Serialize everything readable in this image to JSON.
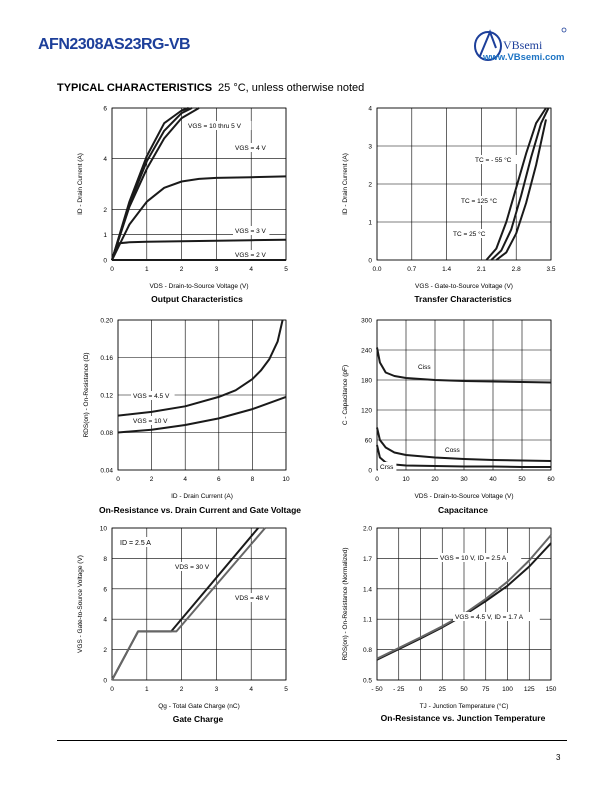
{
  "header": {
    "part_number": "AFN2308AS23RG-VB",
    "brand": "VBsemi",
    "url": "www.VBsemi.com"
  },
  "section": {
    "title": "TYPICAL CHARACTERISTICS",
    "subtitle": "25 °C, unless otherwise noted"
  },
  "page_number": "3",
  "colors": {
    "curve": "#1a1a1a",
    "curve_gray": "#666666",
    "accent": "#1d3f9a"
  },
  "chart_data": [
    {
      "type": "line",
      "title": "Output Characteristics",
      "xlabel": "VDS - Drain-to-Source Voltage (V)",
      "ylabel": "ID - Drain Current (A)",
      "xlim": [
        0,
        5
      ],
      "ylim": [
        0,
        6
      ],
      "xticks": [
        0,
        1,
        2,
        3,
        4,
        5
      ],
      "yticks": [
        0,
        1,
        2,
        4,
        6
      ],
      "grid": true,
      "series": [
        {
          "name": "VGS = 10 thru 5 V",
          "x": [
            0,
            0.5,
            1,
            1.5,
            2,
            2.5
          ],
          "y": [
            0,
            2.1,
            3.6,
            4.8,
            5.6,
            6
          ]
        },
        {
          "name": "",
          "x": [
            0,
            0.5,
            1,
            1.5,
            2,
            2.3
          ],
          "y": [
            0,
            2.2,
            3.9,
            5.1,
            5.8,
            6
          ]
        },
        {
          "name": "",
          "x": [
            0,
            0.5,
            1,
            1.5,
            2,
            2.2
          ],
          "y": [
            0,
            2.3,
            4.1,
            5.4,
            5.9,
            6
          ]
        },
        {
          "name": "VGS = 4 V",
          "x": [
            0,
            0.5,
            1,
            1.5,
            2,
            2.5,
            3,
            4,
            5
          ],
          "y": [
            0,
            1.4,
            2.3,
            2.85,
            3.1,
            3.2,
            3.24,
            3.27,
            3.3
          ]
        },
        {
          "name": "VGS = 3 V",
          "x": [
            0,
            0.1,
            0.2,
            0.5,
            1,
            2,
            3,
            4,
            5
          ],
          "y": [
            0,
            0.45,
            0.66,
            0.7,
            0.72,
            0.74,
            0.76,
            0.78,
            0.8
          ]
        },
        {
          "name": "VGS = 2 V",
          "x": [
            0,
            5
          ],
          "y": [
            0,
            0
          ]
        }
      ]
    },
    {
      "type": "line",
      "title": "Transfer Characteristics",
      "xlabel": "VGS - Gate-to-Source Voltage (V)",
      "ylabel": "ID - Drain Current (A)",
      "xlim": [
        0,
        3.5
      ],
      "ylim": [
        0,
        4
      ],
      "xticks": [
        0.0,
        0.7,
        1.4,
        2.1,
        2.8,
        3.5
      ],
      "yticks": [
        0,
        1,
        2,
        3,
        4
      ],
      "grid": true,
      "series": [
        {
          "name": "TC = - 55 °C",
          "x": [
            2.4,
            2.6,
            2.8,
            3.0,
            3.2,
            3.4
          ],
          "y": [
            0,
            0.2,
            0.7,
            1.5,
            2.5,
            3.7
          ]
        },
        {
          "name": "TC = 125 °C",
          "x": [
            2.2,
            2.4,
            2.6,
            2.8,
            3.0,
            3.2,
            3.4
          ],
          "y": [
            0,
            0.3,
            1.0,
            1.9,
            2.8,
            3.6,
            4
          ]
        },
        {
          "name": "TC = 25 °C",
          "x": [
            2.3,
            2.5,
            2.7,
            2.9,
            3.1,
            3.3,
            3.45
          ],
          "y": [
            0,
            0.25,
            0.8,
            1.7,
            2.7,
            3.6,
            4
          ]
        }
      ]
    },
    {
      "type": "line",
      "title": "On-Resistance vs. Drain Current and Gate Voltage",
      "xlabel": "ID - Drain Current (A)",
      "ylabel": "RDS(on) - On-Resistance (Ω)",
      "xlim": [
        0,
        10
      ],
      "ylim": [
        0.04,
        0.2
      ],
      "xticks": [
        0,
        2,
        4,
        6,
        8,
        10
      ],
      "yticks": [
        0.04,
        0.08,
        0.12,
        0.16,
        0.2
      ],
      "grid": true,
      "series": [
        {
          "name": "VGS = 4.5 V",
          "x": [
            0,
            2,
            4,
            6,
            7,
            8,
            8.5,
            9,
            9.5,
            9.8
          ],
          "y": [
            0.098,
            0.102,
            0.108,
            0.118,
            0.125,
            0.137,
            0.146,
            0.158,
            0.177,
            0.2
          ]
        },
        {
          "name": "VGS = 10 V",
          "x": [
            0,
            2,
            4,
            6,
            8,
            10
          ],
          "y": [
            0.08,
            0.083,
            0.088,
            0.095,
            0.105,
            0.118
          ]
        }
      ]
    },
    {
      "type": "line",
      "title": "Capacitance",
      "xlabel": "VDS - Drain-to-Source Voltage (V)",
      "ylabel": "C - Capacitance (pF)",
      "xlim": [
        0,
        60
      ],
      "ylim": [
        0,
        300
      ],
      "xticks": [
        0,
        10,
        20,
        30,
        40,
        50,
        60
      ],
      "yticks": [
        0,
        60,
        120,
        180,
        240,
        300
      ],
      "grid": true,
      "series": [
        {
          "name": "Ciss",
          "x": [
            0,
            1,
            3,
            6,
            10,
            20,
            30,
            40,
            50,
            60
          ],
          "y": [
            245,
            215,
            195,
            188,
            184,
            180,
            178,
            177,
            176,
            175
          ]
        },
        {
          "name": "Coss",
          "x": [
            0,
            1,
            3,
            6,
            10,
            20,
            30,
            40,
            50,
            60
          ],
          "y": [
            85,
            60,
            45,
            35,
            30,
            25,
            22,
            20,
            19,
            18
          ]
        },
        {
          "name": "Crss",
          "x": [
            0,
            1,
            3,
            6,
            10,
            20,
            30,
            40,
            50,
            60
          ],
          "y": [
            50,
            25,
            15,
            11,
            9,
            8,
            7,
            7,
            6,
            6
          ]
        }
      ]
    },
    {
      "type": "line",
      "title": "Gate Charge",
      "xlabel": "Qg - Total Gate Charge (nC)",
      "ylabel": "VGS - Gate-to-Source Voltage (V)",
      "xlim": [
        0,
        5
      ],
      "ylim": [
        0,
        10
      ],
      "xticks": [
        0,
        1,
        2,
        3,
        4,
        5
      ],
      "yticks": [
        0,
        2,
        4,
        6,
        8,
        10
      ],
      "grid": true,
      "annotation": "ID = 2.5 A",
      "series": [
        {
          "name": "VDS = 30 V",
          "x": [
            0,
            0.75,
            1.7,
            4.2
          ],
          "y": [
            0,
            3.2,
            3.2,
            10
          ]
        },
        {
          "name": "VDS = 48 V",
          "x": [
            0,
            0.75,
            1.85,
            4.4
          ],
          "y": [
            0,
            3.2,
            3.2,
            10
          ]
        }
      ]
    },
    {
      "type": "line",
      "title": "On-Resistance vs. Junction Temperature",
      "xlabel": "TJ - Junction Temperature (°C)",
      "ylabel": "RDS(on) - On-Resistance (Normalized)",
      "xlim": [
        -50,
        150
      ],
      "ylim": [
        0.5,
        2.0
      ],
      "xticks": [
        -50,
        -25,
        0,
        25,
        50,
        75,
        100,
        125,
        150
      ],
      "yticks": [
        0.5,
        0.8,
        1.1,
        1.4,
        1.7,
        2.0
      ],
      "grid": true,
      "series": [
        {
          "name": "VGS = 10 V, ID = 2.5 A",
          "x": [
            -50,
            0,
            25,
            50,
            75,
            100,
            125,
            150
          ],
          "y": [
            0.7,
            0.91,
            1.02,
            1.14,
            1.28,
            1.43,
            1.62,
            1.85
          ]
        },
        {
          "name": "VGS = 4.5 V, ID = 1.7 A",
          "x": [
            -50,
            0,
            25,
            50,
            75,
            100,
            125,
            150
          ],
          "y": [
            0.71,
            0.92,
            1.03,
            1.15,
            1.3,
            1.47,
            1.68,
            1.93
          ]
        }
      ]
    }
  ]
}
